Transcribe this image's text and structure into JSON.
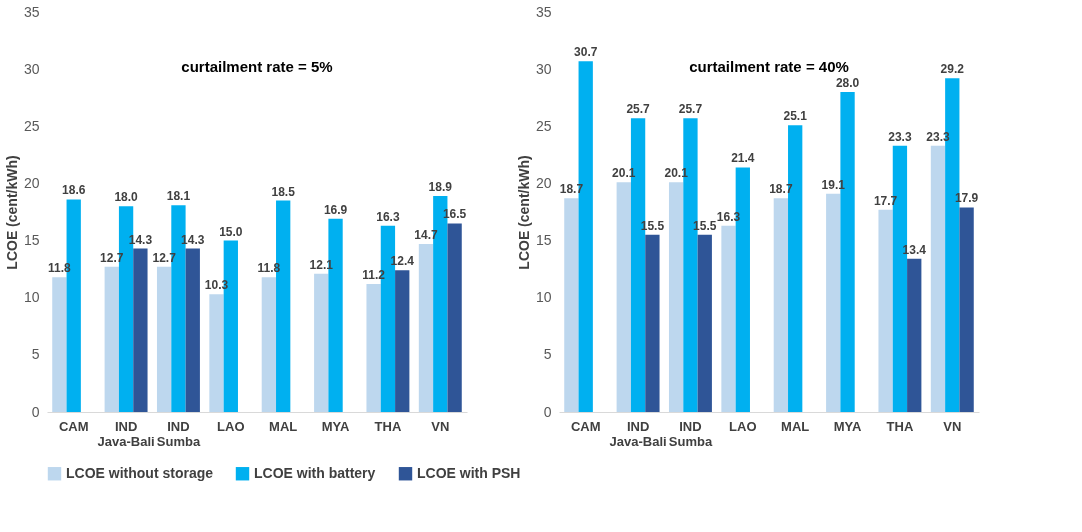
{
  "chart_data": [
    {
      "type": "bar",
      "title": "curtailment rate = 5%",
      "ylabel": "LCOE (cent/kWh)",
      "categories": [
        "CAM",
        "IND\nJava-Bali",
        "IND\nSumba",
        "LAO",
        "MAL",
        "MYA",
        "THA",
        "VN"
      ],
      "series": [
        {
          "name": "LCOE without storage",
          "color": "#bdd7ee",
          "values": [
            11.8,
            12.7,
            12.7,
            10.3,
            11.8,
            12.1,
            11.2,
            14.7
          ],
          "value_labels": [
            "11.8",
            "12.7",
            "12.7",
            "10.3",
            "11.8",
            "12.1",
            "11.2",
            "14.7"
          ]
        },
        {
          "name": "LCOE with battery",
          "color": "#00b0f0",
          "values": [
            18.6,
            18.0,
            18.1,
            15.0,
            18.5,
            16.9,
            16.3,
            18.9
          ],
          "value_labels": [
            "18.6",
            "18.0",
            "18.1",
            "15.0",
            "18.5",
            "16.9",
            "16.3",
            "18.9"
          ]
        },
        {
          "name": "LCOE with PSH",
          "color": "#2f5597",
          "values": [
            null,
            14.3,
            14.3,
            null,
            null,
            null,
            12.4,
            16.5
          ],
          "value_labels": [
            null,
            "14.3",
            "14.3",
            null,
            null,
            null,
            "12.4",
            "16.5"
          ]
        }
      ],
      "ylim": [
        0,
        35
      ],
      "yticks": [
        0,
        5,
        10,
        15,
        20,
        25,
        30,
        35
      ],
      "legend": "bottom"
    },
    {
      "type": "bar",
      "title": "curtailment rate = 40%",
      "ylabel": "LCOE (cent/kWh)",
      "categories": [
        "CAM",
        "IND\nJava-Bali",
        "IND\nSumba",
        "LAO",
        "MAL",
        "MYA",
        "THA",
        "VN"
      ],
      "series": [
        {
          "name": "LCOE without storage",
          "color": "#bdd7ee",
          "values": [
            18.7,
            20.1,
            20.1,
            16.3,
            18.7,
            19.1,
            17.7,
            23.3
          ],
          "value_labels": [
            "18.7",
            "20.1",
            "20.1",
            "16.3",
            "18.7",
            "19.1",
            "17.7",
            "23.3"
          ]
        },
        {
          "name": "LCOE with battery",
          "color": "#00b0f0",
          "values": [
            30.7,
            25.7,
            25.7,
            21.4,
            25.1,
            28.0,
            23.3,
            29.2
          ],
          "value_labels": [
            "30.7",
            "25.7",
            "25.7",
            "21.4",
            "25.1",
            "28.0",
            "23.3",
            "29.2"
          ]
        },
        {
          "name": "LCOE with PSH",
          "color": "#2f5597",
          "values": [
            null,
            15.5,
            15.5,
            null,
            null,
            null,
            13.4,
            17.9
          ],
          "value_labels": [
            null,
            "15.5",
            "15.5",
            null,
            null,
            null,
            "13.4",
            "17.9"
          ]
        }
      ],
      "ylim": [
        0,
        35
      ],
      "yticks": [
        0,
        5,
        10,
        15,
        20,
        25,
        30,
        35
      ],
      "legend": "bottom"
    }
  ]
}
